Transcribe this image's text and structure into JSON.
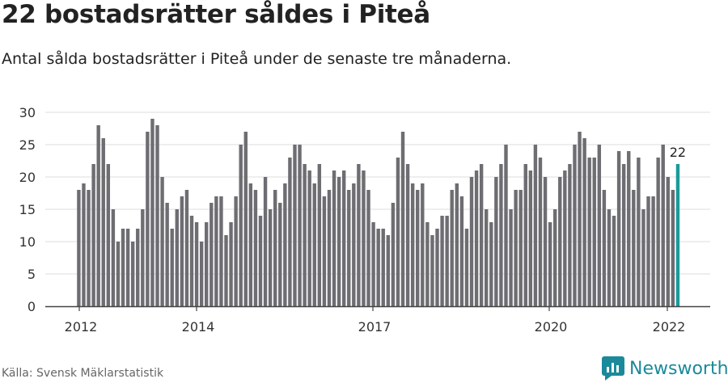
{
  "header": {
    "title": "22 bostadsrätter såldes i Piteå",
    "subtitle": "Antal sålda bostadsrätter i Piteå under de senaste tre månaderna."
  },
  "footer": {
    "source": "Källa: Svensk Mäklarstatistik",
    "brand": "Newsworthy",
    "brand_icon": "newsworthy-logo-icon"
  },
  "colors": {
    "bar": "#6d6d72",
    "highlight": "#1a9a9a",
    "axis": "#444444",
    "grid": "#dddddd",
    "brand": "#1a8a9a"
  },
  "chart_data": {
    "type": "bar",
    "x_label_ticks": [
      "2012",
      "2014",
      "2017",
      "2020",
      "2022"
    ],
    "y_ticks": [
      0,
      5,
      10,
      15,
      20,
      25,
      30
    ],
    "ylim": [
      0,
      30
    ],
    "grid": true,
    "highlight_label": "22",
    "values": [
      18,
      19,
      18,
      22,
      28,
      26,
      22,
      15,
      10,
      12,
      12,
      10,
      12,
      15,
      27,
      29,
      28,
      20,
      16,
      12,
      15,
      17,
      18,
      14,
      13,
      10,
      13,
      16,
      17,
      17,
      11,
      13,
      17,
      25,
      27,
      19,
      18,
      14,
      20,
      15,
      18,
      16,
      19,
      23,
      25,
      25,
      22,
      21,
      19,
      22,
      17,
      18,
      21,
      20,
      21,
      18,
      19,
      22,
      21,
      18,
      13,
      12,
      12,
      11,
      16,
      23,
      27,
      22,
      19,
      18,
      19,
      13,
      11,
      12,
      14,
      14,
      18,
      19,
      17,
      12,
      20,
      21,
      22,
      15,
      13,
      20,
      22,
      25,
      15,
      18,
      18,
      22,
      21,
      25,
      23,
      20,
      13,
      15,
      20,
      21,
      22,
      25,
      27,
      26,
      23,
      23,
      25,
      18,
      15,
      14,
      24,
      22,
      24,
      18,
      23,
      15,
      17,
      17,
      23,
      25,
      20,
      18,
      22
    ],
    "highlight_index": 122
  }
}
